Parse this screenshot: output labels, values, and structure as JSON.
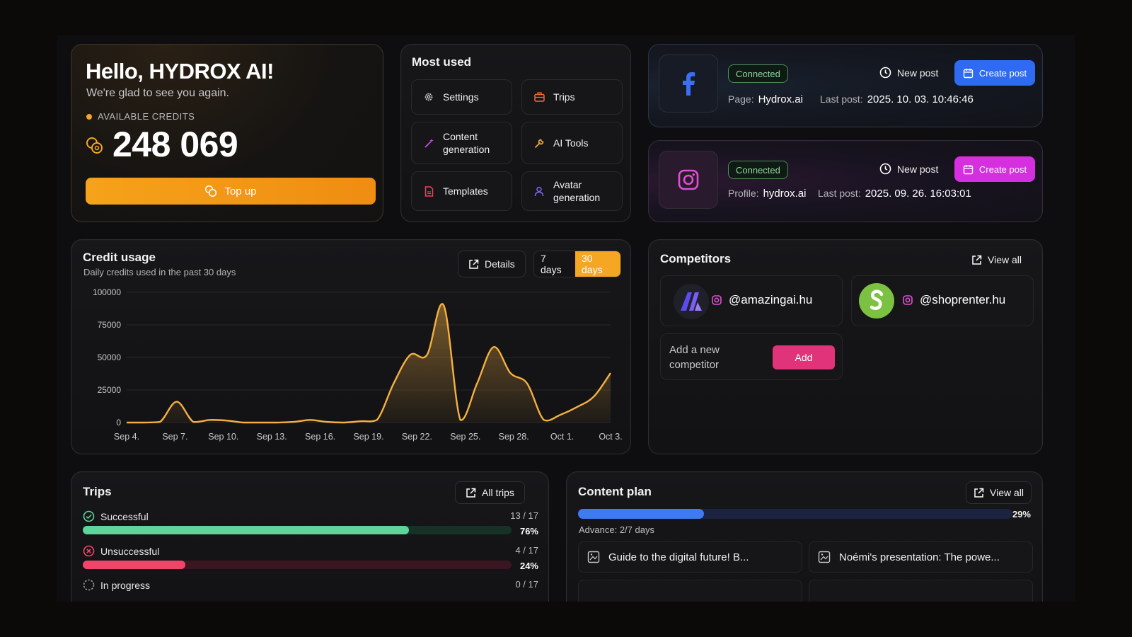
{
  "greeting": {
    "title": "Hello, HYDROX AI!",
    "subtitle": "We're glad to see you again.",
    "credits_label": "AVAILABLE CREDITS",
    "credits_value": "248 069",
    "topup_label": "Top up"
  },
  "most_used": {
    "title": "Most used",
    "items": [
      {
        "label": "Settings",
        "icon": "gear-icon"
      },
      {
        "label": "Trips",
        "icon": "suitcase-icon"
      },
      {
        "label": "Content generation",
        "icon": "magic-wand-icon"
      },
      {
        "label": "AI Tools",
        "icon": "wrench-icon"
      },
      {
        "label": "Templates",
        "icon": "document-icon"
      },
      {
        "label": "Avatar generation",
        "icon": "user-icon"
      }
    ]
  },
  "facebook": {
    "status": "Connected",
    "new_post_label": "New post",
    "create_label": "Create post",
    "page_label": "Page:",
    "page_value": "Hydrox.ai",
    "last_post_label": "Last post:",
    "last_post_value": "2025. 10. 03. 10:46:46",
    "accent": "#2f6bf2"
  },
  "instagram": {
    "status": "Connected",
    "new_post_label": "New post",
    "create_label": "Create post",
    "profile_label": "Profile:",
    "profile_value": "hydrox.ai",
    "last_post_label": "Last post:",
    "last_post_value": "2025. 09. 26. 16:03:01",
    "accent": "#d62fe0"
  },
  "credit_usage": {
    "title": "Credit usage",
    "subtitle": "Daily credits used in the past 30 days",
    "details_label": "Details",
    "range_7": "7 days",
    "range_30": "30 days"
  },
  "chart_data": {
    "type": "area",
    "title": "Credit usage",
    "subtitle": "Daily credits used in the past 30 days",
    "xlabel": "",
    "ylabel": "",
    "ylim": [
      0,
      100000
    ],
    "yticks": [
      100000,
      75000,
      50000,
      25000,
      0
    ],
    "xticks": [
      "Sep 4.",
      "Sep 7.",
      "Sep 10.",
      "Sep 13.",
      "Sep 16.",
      "Sep 19.",
      "Sep 22.",
      "Sep 25.",
      "Sep 28.",
      "Oct 1.",
      "Oct 3."
    ],
    "x": [
      "Sep 4",
      "Sep 5",
      "Sep 6",
      "Sep 7",
      "Sep 8",
      "Sep 9",
      "Sep 10",
      "Sep 11",
      "Sep 12",
      "Sep 13",
      "Sep 14",
      "Sep 15",
      "Sep 16",
      "Sep 17",
      "Sep 18",
      "Sep 19",
      "Sep 20",
      "Sep 21",
      "Sep 22",
      "Sep 23",
      "Sep 24",
      "Sep 25",
      "Sep 26",
      "Sep 27",
      "Sep 28",
      "Sep 29",
      "Sep 30",
      "Oct 1",
      "Oct 2",
      "Oct 3"
    ],
    "values": [
      0,
      0,
      500,
      16000,
      500,
      2000,
      1500,
      0,
      0,
      0,
      500,
      2000,
      500,
      0,
      1000,
      2000,
      30000,
      52000,
      52000,
      90000,
      2000,
      30000,
      58000,
      38000,
      30000,
      2000,
      6000,
      12000,
      20000,
      38000
    ],
    "grid": true,
    "line_color": "#f5b041"
  },
  "competitors": {
    "title": "Competitors",
    "view_all_label": "View all",
    "items": [
      {
        "handle": "@amazingai.hu"
      },
      {
        "handle": "@shoprenter.hu"
      }
    ],
    "add_text": "Add a new competitor",
    "add_label": "Add"
  },
  "trips": {
    "title": "Trips",
    "all_label": "All trips",
    "rows": [
      {
        "label": "Successful",
        "count": "13 / 17",
        "pct_label": "76%",
        "fraction": 0.76,
        "color": "#5fd39a"
      },
      {
        "label": "Unsuccessful",
        "count": "4 / 17",
        "pct_label": "24%",
        "fraction": 0.24,
        "color": "#f0456a"
      },
      {
        "label": "In progress",
        "count": "0 / 17",
        "pct_label": "",
        "fraction": 0.0,
        "color": "#888888"
      }
    ]
  },
  "content_plan": {
    "title": "Content plan",
    "view_all_label": "View all",
    "progress_label": "29%",
    "progress_fraction": 0.29,
    "advance_text": "Advance: 2/7 days",
    "items": [
      {
        "label": "Guide to the digital future! B..."
      },
      {
        "label": "Noémi's presentation: The powe..."
      }
    ]
  }
}
